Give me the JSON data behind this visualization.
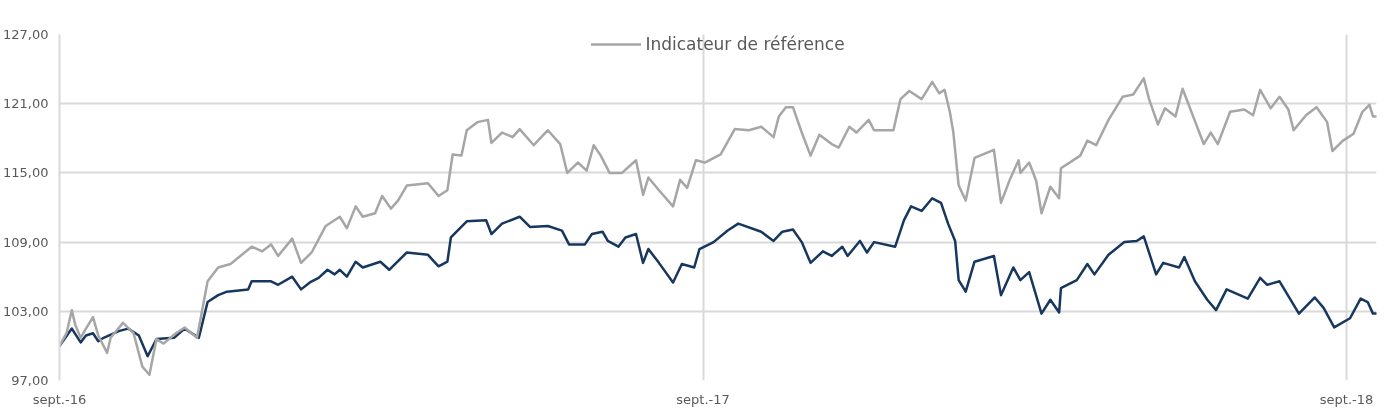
{
  "chart_data": {
    "type": "line",
    "xlim": [
      "2016-09-01",
      "2018-09-18"
    ],
    "ylim": [
      97,
      127
    ],
    "xticks": [
      {
        "value": "2016-09-01",
        "label": "sept.-16"
      },
      {
        "value": "2017-09-01",
        "label": "sept.-17"
      },
      {
        "value": "2018-09-01",
        "label": "sept.-18"
      }
    ],
    "yticks": [
      {
        "value": 97,
        "label": "97,00"
      },
      {
        "value": 103,
        "label": "103,00"
      },
      {
        "value": 109,
        "label": "109,00"
      },
      {
        "value": 115,
        "label": "115,00"
      },
      {
        "value": 121,
        "label": "121,00"
      },
      {
        "value": 127,
        "label": "127,00"
      }
    ],
    "grid": true,
    "legend": "top",
    "series": [
      {
        "color": "#17375e",
        "x": [
          "2016-09-01",
          "2016-09-08",
          "2016-09-13",
          "2016-09-16",
          "2016-09-20",
          "2016-09-23",
          "2016-09-26",
          "2016-10-05",
          "2016-10-10",
          "2016-10-16",
          "2016-10-21",
          "2016-10-26",
          "2016-11-05",
          "2016-11-11",
          "2016-11-19",
          "2016-11-24",
          "2016-11-30",
          "2016-12-05",
          "2016-12-17",
          "2016-12-19",
          "2016-12-25",
          "2016-12-30",
          "2017-01-03",
          "2017-01-11",
          "2017-01-16",
          "2017-01-21",
          "2017-01-26",
          "2017-01-31",
          "2017-02-04",
          "2017-02-07",
          "2017-02-11",
          "2017-02-16",
          "2017-02-20",
          "2017-03-02",
          "2017-03-07",
          "2017-03-11",
          "2017-03-17",
          "2017-03-29",
          "2017-04-04",
          "2017-04-09",
          "2017-04-11",
          "2017-04-20",
          "2017-05-01",
          "2017-05-04",
          "2017-05-10",
          "2017-05-20",
          "2017-05-26",
          "2017-06-05",
          "2017-06-13",
          "2017-06-17",
          "2017-06-26",
          "2017-06-30",
          "2017-07-06",
          "2017-07-09",
          "2017-07-15",
          "2017-07-19",
          "2017-07-25",
          "2017-07-29",
          "2017-08-01",
          "2017-08-07",
          "2017-08-15",
          "2017-08-20",
          "2017-08-27",
          "2017-08-30",
          "2017-09-07",
          "2017-09-15",
          "2017-09-21",
          "2017-10-04",
          "2017-10-11",
          "2017-10-16",
          "2017-10-22",
          "2017-10-27",
          "2017-11-01",
          "2017-11-08",
          "2017-11-13",
          "2017-11-19",
          "2017-11-22",
          "2017-11-29",
          "2017-12-03",
          "2017-12-07",
          "2017-12-19",
          "2017-12-24",
          "2017-12-28",
          "2018-01-03",
          "2018-01-09",
          "2018-01-14",
          "2018-01-18",
          "2018-01-22",
          "2018-01-24",
          "2018-01-28",
          "2018-02-02",
          "2018-02-13",
          "2018-02-17",
          "2018-02-24",
          "2018-02-28",
          "2018-03-05",
          "2018-03-12",
          "2018-03-17",
          "2018-03-22",
          "2018-03-23",
          "2018-04-01",
          "2018-04-07",
          "2018-04-11",
          "2018-04-19",
          "2018-04-28",
          "2018-05-05",
          "2018-05-09",
          "2018-05-16",
          "2018-05-20",
          "2018-05-29",
          "2018-06-01",
          "2018-06-07",
          "2018-06-14",
          "2018-06-19",
          "2018-06-25",
          "2018-07-07",
          "2018-07-14",
          "2018-07-18",
          "2018-07-25",
          "2018-08-05",
          "2018-08-14",
          "2018-08-19",
          "2018-08-25",
          "2018-09-03",
          "2018-09-09",
          "2018-09-13",
          "2018-09-16",
          "2018-09-18"
        ],
        "values": [
          100.0,
          101.5,
          100.3,
          100.9,
          101.1,
          100.4,
          100.7,
          101.3,
          101.5,
          100.9,
          99.1,
          100.6,
          100.7,
          101.5,
          100.7,
          103.8,
          104.4,
          104.7,
          104.9,
          105.6,
          105.6,
          105.6,
          105.3,
          106.0,
          104.9,
          105.5,
          105.9,
          106.6,
          106.2,
          106.6,
          106.0,
          107.3,
          106.8,
          107.3,
          106.6,
          107.2,
          108.1,
          107.9,
          106.9,
          107.3,
          109.4,
          110.8,
          110.9,
          109.7,
          110.6,
          111.2,
          110.3,
          110.4,
          110.0,
          108.8,
          108.8,
          109.7,
          109.9,
          109.1,
          108.6,
          109.4,
          109.7,
          107.2,
          108.4,
          107.2,
          105.5,
          107.1,
          106.8,
          108.4,
          109.0,
          110.0,
          110.6,
          109.9,
          109.1,
          109.9,
          110.1,
          109.0,
          107.2,
          108.2,
          107.8,
          108.6,
          107.8,
          109.1,
          108.1,
          109.0,
          108.6,
          110.9,
          112.1,
          111.7,
          112.8,
          112.4,
          110.6,
          109.1,
          105.7,
          104.7,
          107.3,
          107.8,
          104.4,
          106.8,
          105.7,
          106.4,
          102.8,
          104.0,
          102.9,
          105.0,
          105.7,
          107.1,
          106.2,
          107.9,
          109.0,
          109.1,
          109.5,
          106.2,
          107.2,
          106.8,
          107.7,
          105.6,
          104.0,
          103.1,
          104.9,
          104.1,
          105.9,
          105.3,
          105.6,
          102.8,
          104.2,
          103.3,
          101.6,
          102.4,
          104.1,
          103.8,
          102.8,
          102.8
        ]
      },
      {
        "name": "Indicateur de référence",
        "color": "#a6a6a6",
        "x": [
          "2016-09-01",
          "2016-09-05",
          "2016-09-08",
          "2016-09-10",
          "2016-09-13",
          "2016-09-16",
          "2016-09-20",
          "2016-09-23",
          "2016-09-28",
          "2016-09-30",
          "2016-10-07",
          "2016-10-13",
          "2016-10-18",
          "2016-10-22",
          "2016-10-26",
          "2016-10-30",
          "2016-11-06",
          "2016-11-11",
          "2016-11-18",
          "2016-11-24",
          "2016-11-30",
          "2016-12-07",
          "2016-12-19",
          "2016-12-25",
          "2016-12-30",
          "2017-01-03",
          "2017-01-11",
          "2017-01-16",
          "2017-01-22",
          "2017-01-30",
          "2017-02-07",
          "2017-02-11",
          "2017-02-16",
          "2017-02-20",
          "2017-02-27",
          "2017-03-03",
          "2017-03-08",
          "2017-03-12",
          "2017-03-17",
          "2017-03-29",
          "2017-04-04",
          "2017-04-09",
          "2017-04-12",
          "2017-04-17",
          "2017-04-20",
          "2017-04-26",
          "2017-05-02",
          "2017-05-04",
          "2017-05-10",
          "2017-05-16",
          "2017-05-20",
          "2017-05-28",
          "2017-06-05",
          "2017-06-12",
          "2017-06-16",
          "2017-06-22",
          "2017-06-27",
          "2017-07-01",
          "2017-07-05",
          "2017-07-10",
          "2017-07-17",
          "2017-07-25",
          "2017-07-29",
          "2017-08-01",
          "2017-08-07",
          "2017-08-15",
          "2017-08-19",
          "2017-08-23",
          "2017-08-28",
          "2017-09-02",
          "2017-09-11",
          "2017-09-19",
          "2017-09-27",
          "2017-10-04",
          "2017-10-11",
          "2017-10-14",
          "2017-10-18",
          "2017-10-22",
          "2017-10-27",
          "2017-11-01",
          "2017-11-06",
          "2017-11-13",
          "2017-11-17",
          "2017-11-23",
          "2017-11-27",
          "2017-12-04",
          "2017-12-07",
          "2017-12-18",
          "2017-12-22",
          "2017-12-27",
          "2018-01-03",
          "2018-01-09",
          "2018-01-13",
          "2018-01-16",
          "2018-01-19",
          "2018-01-21",
          "2018-01-24",
          "2018-01-28",
          "2018-02-02",
          "2018-02-13",
          "2018-02-17",
          "2018-02-22",
          "2018-02-27",
          "2018-02-28",
          "2018-03-05",
          "2018-03-09",
          "2018-03-12",
          "2018-03-17",
          "2018-03-22",
          "2018-03-23",
          "2018-04-03",
          "2018-04-07",
          "2018-04-12",
          "2018-04-19",
          "2018-04-27",
          "2018-05-03",
          "2018-05-09",
          "2018-05-12",
          "2018-05-17",
          "2018-05-21",
          "2018-05-27",
          "2018-05-31",
          "2018-06-06",
          "2018-06-12",
          "2018-06-16",
          "2018-06-20",
          "2018-06-27",
          "2018-07-05",
          "2018-07-10",
          "2018-07-14",
          "2018-07-20",
          "2018-07-25",
          "2018-07-30",
          "2018-08-02",
          "2018-08-09",
          "2018-08-15",
          "2018-08-21",
          "2018-08-24",
          "2018-08-30",
          "2018-09-05",
          "2018-09-10",
          "2018-09-14",
          "2018-09-16",
          "2018-09-18"
        ],
        "values": [
          100.0,
          101.1,
          103.1,
          101.8,
          100.7,
          101.5,
          102.5,
          100.9,
          99.4,
          100.7,
          102.0,
          101.1,
          98.2,
          97.5,
          100.6,
          100.2,
          101.1,
          101.6,
          100.7,
          105.6,
          106.8,
          107.1,
          108.6,
          108.2,
          108.8,
          107.8,
          109.3,
          107.2,
          108.1,
          110.4,
          111.2,
          110.2,
          112.1,
          111.2,
          111.5,
          113.0,
          111.9,
          112.6,
          113.9,
          114.1,
          113.0,
          113.5,
          116.6,
          116.5,
          118.7,
          119.4,
          119.6,
          117.6,
          118.5,
          118.1,
          118.8,
          117.4,
          118.7,
          117.5,
          115.0,
          115.9,
          115.2,
          117.4,
          116.5,
          115.0,
          115.0,
          116.1,
          113.1,
          114.6,
          113.5,
          112.1,
          114.4,
          113.7,
          116.1,
          115.9,
          116.6,
          118.8,
          118.7,
          119.0,
          118.1,
          119.9,
          120.7,
          120.7,
          118.5,
          116.5,
          118.3,
          117.5,
          117.2,
          119.0,
          118.5,
          119.6,
          118.7,
          118.7,
          121.4,
          122.1,
          121.4,
          122.9,
          121.9,
          122.2,
          120.3,
          118.5,
          113.9,
          112.6,
          116.3,
          117.0,
          112.4,
          114.4,
          116.1,
          115.0,
          115.9,
          114.3,
          111.5,
          113.8,
          112.8,
          115.4,
          116.5,
          117.8,
          117.4,
          119.6,
          121.6,
          121.8,
          123.2,
          121.4,
          119.2,
          120.6,
          119.9,
          122.3,
          119.9,
          117.5,
          118.5,
          117.5,
          120.3,
          120.5,
          120.0,
          122.2,
          120.6,
          121.6,
          120.5,
          118.7,
          120.0,
          120.7,
          119.4,
          116.9,
          117.8,
          118.4,
          120.3,
          120.9,
          119.9,
          119.9
        ]
      }
    ]
  }
}
